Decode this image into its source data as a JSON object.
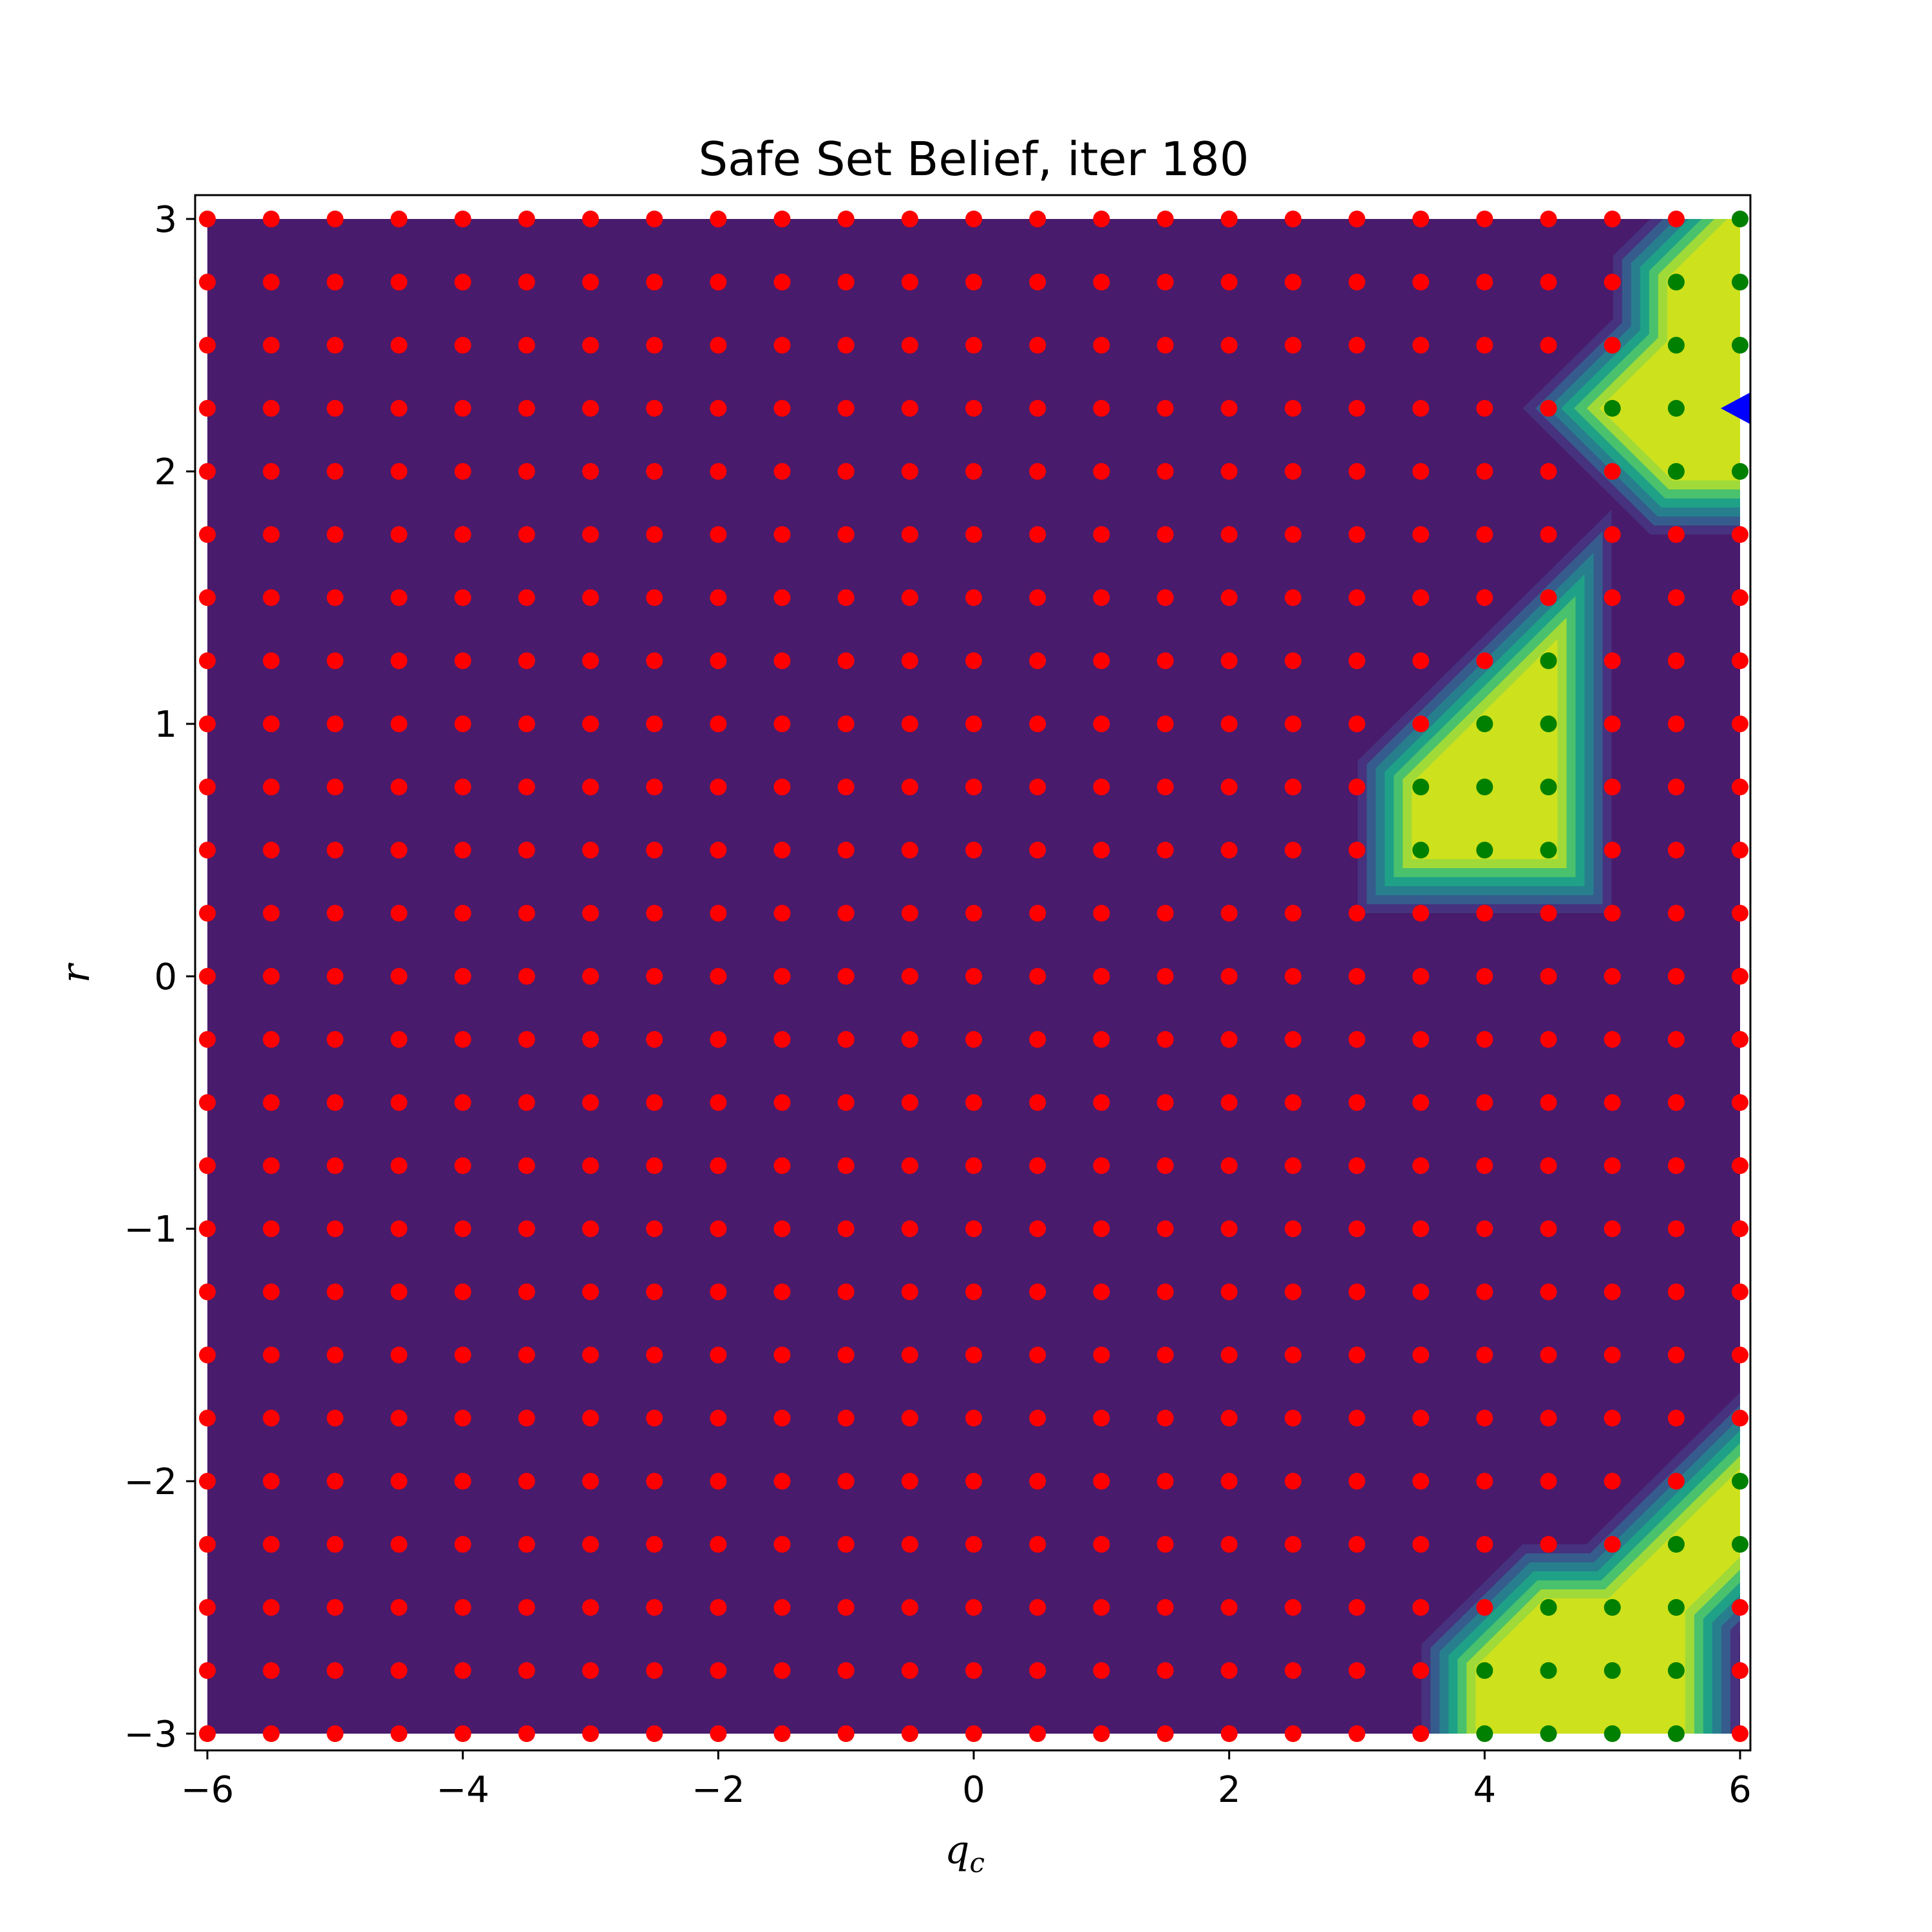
{
  "chart_data": {
    "type": "heatmap",
    "title": "Safe Set Belief, iter 180",
    "xlabel": "q",
    "xlabel_sub": "c",
    "ylabel": "r",
    "xlim": [
      -6,
      6
    ],
    "ylim": [
      -3,
      3
    ],
    "x_ticks": [
      -6,
      -4,
      -2,
      0,
      2,
      4,
      6
    ],
    "y_ticks": [
      -3,
      -2,
      -1,
      0,
      1,
      2,
      3
    ],
    "x_tick_labels": [
      "−6",
      "−4",
      "−2",
      "0",
      "2",
      "4",
      "6"
    ],
    "y_tick_labels": [
      "−3",
      "−2",
      "−1",
      "0",
      "1",
      "2",
      "3"
    ],
    "grid": false,
    "colors": {
      "background_region": "#481b6d",
      "safe_region": "#cde11d",
      "unsafe_point": "#ff0000",
      "safe_point": "#008000",
      "current_state_marker": "#0000ff",
      "contour_levels": [
        "#46327e",
        "#365c8d",
        "#277f8e",
        "#1fa187",
        "#4ac16d",
        "#a0da39"
      ]
    },
    "grid_points": {
      "x": [
        -6,
        -5.5,
        -5,
        -4.5,
        -4,
        -3.5,
        -3,
        -2.5,
        -2,
        -1.5,
        -1,
        -0.5,
        0,
        0.5,
        1,
        1.5,
        2,
        2.5,
        3,
        3.5,
        4,
        4.5,
        5,
        5.5,
        6
      ],
      "y": [
        -3,
        -2.75,
        -2.5,
        -2.25,
        -2,
        -1.75,
        -1.5,
        -1.25,
        -1,
        -0.75,
        -0.5,
        -0.25,
        0,
        0.25,
        0.5,
        0.75,
        1,
        1.25,
        1.5,
        1.75,
        2,
        2.25,
        2.5,
        2.75,
        3
      ]
    },
    "safe_points": [
      [
        6,
        3
      ],
      [
        5.5,
        2.75
      ],
      [
        6,
        2.75
      ],
      [
        5.5,
        2.5
      ],
      [
        6,
        2.5
      ],
      [
        5,
        2.25
      ],
      [
        5.5,
        2.25
      ],
      [
        5.5,
        2
      ],
      [
        6,
        2
      ],
      [
        4.5,
        1.25
      ],
      [
        4,
        1
      ],
      [
        4.5,
        1
      ],
      [
        3.5,
        0.75
      ],
      [
        4,
        0.75
      ],
      [
        4.5,
        0.75
      ],
      [
        3.5,
        0.5
      ],
      [
        4,
        0.5
      ],
      [
        4.5,
        0.5
      ],
      [
        6,
        -2
      ],
      [
        5.5,
        -2.25
      ],
      [
        6,
        -2.25
      ],
      [
        4.5,
        -2.5
      ],
      [
        5,
        -2.5
      ],
      [
        5.5,
        -2.5
      ],
      [
        4,
        -2.75
      ],
      [
        4.5,
        -2.75
      ],
      [
        5,
        -2.75
      ],
      [
        5.5,
        -2.75
      ],
      [
        4,
        -3
      ],
      [
        4.5,
        -3
      ],
      [
        5,
        -3
      ],
      [
        5.5,
        -3
      ]
    ],
    "safe_regions": [
      [
        [
          6,
          3
        ],
        [
          5.5,
          2.75
        ],
        [
          5.5,
          2.5
        ],
        [
          5,
          2.25
        ],
        [
          5.5,
          2
        ],
        [
          6,
          2
        ]
      ],
      [
        [
          4.5,
          1.25
        ],
        [
          3.5,
          0.75
        ],
        [
          3.5,
          0.5
        ],
        [
          4.5,
          0.5
        ]
      ],
      [
        [
          6,
          -2
        ],
        [
          5.5,
          -2.25
        ],
        [
          5,
          -2.5
        ],
        [
          4.5,
          -2.5
        ],
        [
          4,
          -2.75
        ],
        [
          4,
          -3
        ],
        [
          5.5,
          -3
        ],
        [
          5.5,
          -2.5
        ],
        [
          6,
          -2.25
        ]
      ]
    ],
    "current_state": [
      6,
      2.25
    ]
  }
}
